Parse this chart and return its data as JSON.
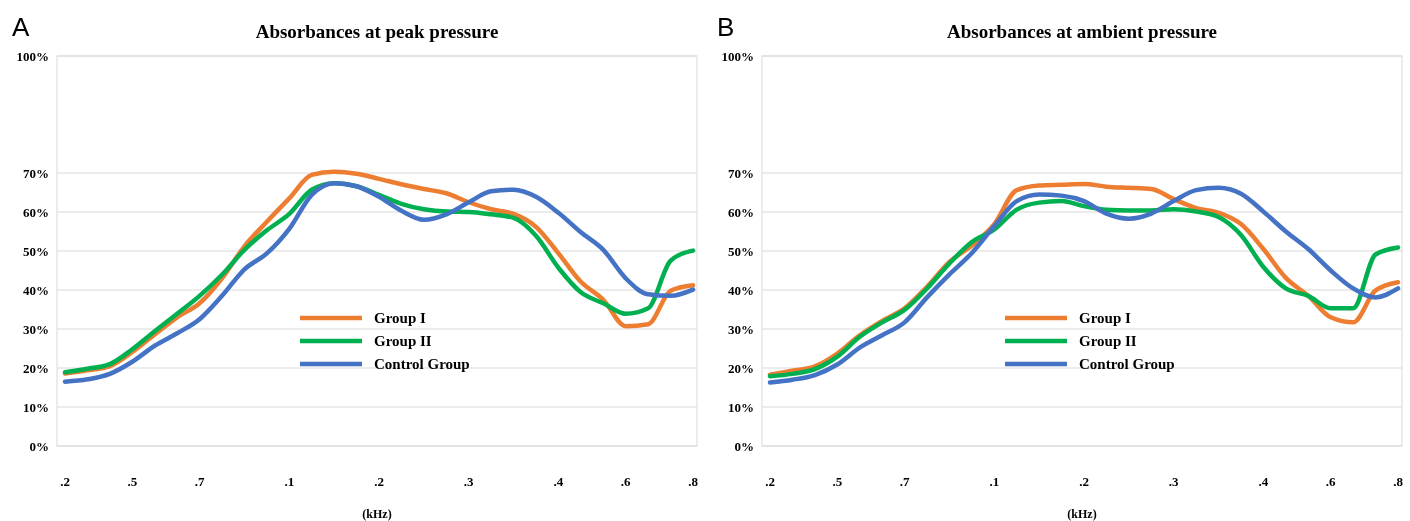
{
  "chart_data": [
    {
      "type": "line",
      "title": "Absorbances at peak  pressure",
      "xlabel": "(kHz)",
      "annotations": [
        "A"
      ],
      "grid": "y",
      "legend": "bottom",
      "ylim": [
        0,
        100
      ],
      "yticks": [
        {
          "value": 0,
          "label": "0%"
        },
        {
          "value": 10,
          "label": "10%"
        },
        {
          "value": 20,
          "label": "20%"
        },
        {
          "value": 30,
          "label": "30%"
        },
        {
          "value": 40,
          "label": "40%"
        },
        {
          "value": 50,
          "label": "50%"
        },
        {
          "value": 60,
          "label": "60%"
        },
        {
          "value": 70,
          "label": "70%"
        },
        {
          "value": 100,
          "label": "100%"
        }
      ],
      "categories": [
        ".2",
        null,
        null,
        ".5",
        null,
        null,
        ".7",
        null,
        null,
        null,
        ".1",
        null,
        null,
        null,
        ".2",
        null,
        null,
        null,
        ".3",
        null,
        null,
        null,
        ".4",
        null,
        null,
        ".6",
        null,
        null,
        ".8"
      ],
      "series": [
        {
          "name": "Group I",
          "color": "#ed7d31",
          "values": [
            18.6,
            19.4,
            20.5,
            24.1,
            28.6,
            33,
            36.6,
            43,
            51.2,
            57.5,
            63.5,
            69.5,
            70.3,
            69.8,
            68.5,
            67.1,
            65.9,
            64.8,
            62.5,
            60.7,
            59.5,
            56.2,
            49.4,
            42.1,
            37.5,
            30.7,
            31.2,
            39.8,
            41.2
          ]
        },
        {
          "name": "Group II",
          "color": "#00b050",
          "values": [
            18.9,
            19.8,
            21,
            24.8,
            29.4,
            33.9,
            38.5,
            43.9,
            50.3,
            55.3,
            59.5,
            65.7,
            67.4,
            66.6,
            64.4,
            62.1,
            60.7,
            60.1,
            60,
            59.4,
            58.5,
            53.9,
            45.7,
            39.4,
            36.6,
            33.9,
            35.3,
            47.5,
            50.1
          ]
        },
        {
          "name": "Control Group",
          "color": "#4472c4",
          "values": [
            16.5,
            17.1,
            18.5,
            21.6,
            25.7,
            28.9,
            32.5,
            38.5,
            45.3,
            49.4,
            55.7,
            64.4,
            67.4,
            66.6,
            63.9,
            60.3,
            58,
            59.4,
            62.5,
            65.3,
            65.7,
            63.9,
            59.8,
            54.8,
            50.3,
            43,
            38.9,
            38.5,
            40.1
          ]
        }
      ]
    },
    {
      "type": "line",
      "title": "Absorbances at ambient pressure",
      "xlabel": "(kHz)",
      "annotations": [
        "B"
      ],
      "grid": "y",
      "legend": "bottom",
      "ylim": [
        0,
        100
      ],
      "yticks": [
        {
          "value": 0,
          "label": "0%"
        },
        {
          "value": 10,
          "label": "10%"
        },
        {
          "value": 20,
          "label": "20%"
        },
        {
          "value": 30,
          "label": "30%"
        },
        {
          "value": 40,
          "label": "40%"
        },
        {
          "value": 50,
          "label": "50%"
        },
        {
          "value": 60,
          "label": "60%"
        },
        {
          "value": 70,
          "label": "70%"
        },
        {
          "value": 100,
          "label": "100%"
        }
      ],
      "categories": [
        ".2",
        null,
        null,
        ".5",
        null,
        null,
        ".7",
        null,
        null,
        null,
        ".1",
        null,
        null,
        null,
        ".2",
        null,
        null,
        null,
        ".3",
        null,
        null,
        null,
        ".4",
        null,
        null,
        ".6",
        null,
        null,
        ".8"
      ],
      "series": [
        {
          "name": "Group I",
          "color": "#ed7d31",
          "values": [
            18.3,
            19.3,
            20.4,
            23.7,
            28.4,
            32.1,
            35.3,
            40.8,
            47.2,
            51.4,
            56.9,
            65.6,
            66.8,
            67,
            67.2,
            66.5,
            66.2,
            65.9,
            63.3,
            61,
            59.8,
            56.9,
            50.5,
            43.1,
            38.5,
            33,
            31.7,
            39.9,
            42
          ]
        },
        {
          "name": "Group II",
          "color": "#00b050",
          "values": [
            17.9,
            18.5,
            19.7,
            22.9,
            28,
            31.7,
            34.9,
            40.4,
            46.8,
            52.3,
            55.5,
            60.6,
            62.4,
            62.8,
            61.5,
            60.6,
            60.4,
            60.4,
            60.7,
            60.1,
            58.7,
            54.1,
            45.9,
            40.4,
            38.5,
            35.3,
            35.3,
            49.1,
            50.9
          ]
        },
        {
          "name": "Control Group",
          "color": "#4472c4",
          "values": [
            16.3,
            17,
            18.2,
            20.9,
            25.2,
            28.4,
            31.7,
            38.1,
            44,
            49.5,
            56.4,
            62.8,
            64.5,
            64.2,
            62.8,
            59.6,
            58.3,
            59.6,
            62.8,
            65.6,
            66.2,
            64.7,
            60.1,
            55,
            50.5,
            45,
            40.4,
            38.1,
            40.4
          ]
        }
      ]
    }
  ]
}
